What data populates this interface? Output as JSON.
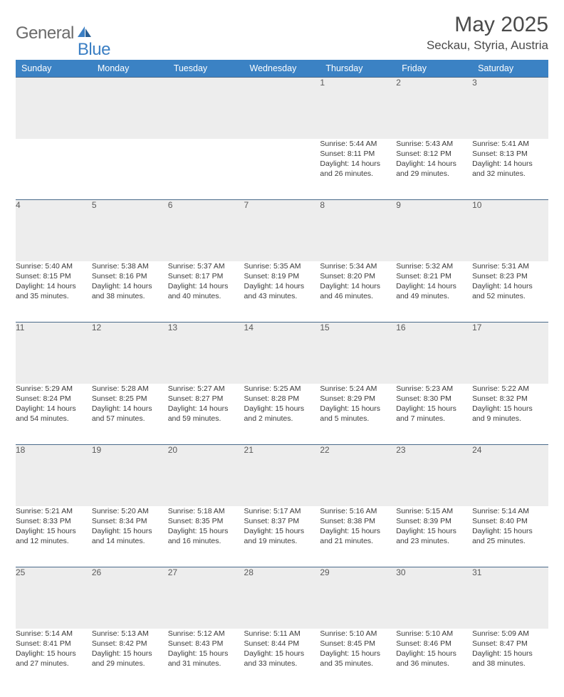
{
  "logo": {
    "part1": "General",
    "part2": "Blue"
  },
  "title": "May 2025",
  "location": "Seckau, Styria, Austria",
  "colors": {
    "header_bg": "#3b82c4",
    "header_text": "#ffffff",
    "daynum_bg": "#ededed",
    "rule": "#4a6a8a",
    "body_text": "#3a3a3a",
    "logo_gray": "#6b6b6b",
    "logo_blue": "#3b7fc4"
  },
  "typography": {
    "title_fontsize": 30,
    "location_fontsize": 17,
    "weekday_fontsize": 12.5,
    "daynum_fontsize": 12,
    "cell_fontsize": 10.5
  },
  "weekdays": [
    "Sunday",
    "Monday",
    "Tuesday",
    "Wednesday",
    "Thursday",
    "Friday",
    "Saturday"
  ],
  "weeks": [
    {
      "nums": [
        "",
        "",
        "",
        "",
        "1",
        "2",
        "3"
      ],
      "cells": [
        null,
        null,
        null,
        null,
        {
          "sunrise": "Sunrise: 5:44 AM",
          "sunset": "Sunset: 8:11 PM",
          "day1": "Daylight: 14 hours",
          "day2": "and 26 minutes."
        },
        {
          "sunrise": "Sunrise: 5:43 AM",
          "sunset": "Sunset: 8:12 PM",
          "day1": "Daylight: 14 hours",
          "day2": "and 29 minutes."
        },
        {
          "sunrise": "Sunrise: 5:41 AM",
          "sunset": "Sunset: 8:13 PM",
          "day1": "Daylight: 14 hours",
          "day2": "and 32 minutes."
        }
      ]
    },
    {
      "nums": [
        "4",
        "5",
        "6",
        "7",
        "8",
        "9",
        "10"
      ],
      "cells": [
        {
          "sunrise": "Sunrise: 5:40 AM",
          "sunset": "Sunset: 8:15 PM",
          "day1": "Daylight: 14 hours",
          "day2": "and 35 minutes."
        },
        {
          "sunrise": "Sunrise: 5:38 AM",
          "sunset": "Sunset: 8:16 PM",
          "day1": "Daylight: 14 hours",
          "day2": "and 38 minutes."
        },
        {
          "sunrise": "Sunrise: 5:37 AM",
          "sunset": "Sunset: 8:17 PM",
          "day1": "Daylight: 14 hours",
          "day2": "and 40 minutes."
        },
        {
          "sunrise": "Sunrise: 5:35 AM",
          "sunset": "Sunset: 8:19 PM",
          "day1": "Daylight: 14 hours",
          "day2": "and 43 minutes."
        },
        {
          "sunrise": "Sunrise: 5:34 AM",
          "sunset": "Sunset: 8:20 PM",
          "day1": "Daylight: 14 hours",
          "day2": "and 46 minutes."
        },
        {
          "sunrise": "Sunrise: 5:32 AM",
          "sunset": "Sunset: 8:21 PM",
          "day1": "Daylight: 14 hours",
          "day2": "and 49 minutes."
        },
        {
          "sunrise": "Sunrise: 5:31 AM",
          "sunset": "Sunset: 8:23 PM",
          "day1": "Daylight: 14 hours",
          "day2": "and 52 minutes."
        }
      ]
    },
    {
      "nums": [
        "11",
        "12",
        "13",
        "14",
        "15",
        "16",
        "17"
      ],
      "cells": [
        {
          "sunrise": "Sunrise: 5:29 AM",
          "sunset": "Sunset: 8:24 PM",
          "day1": "Daylight: 14 hours",
          "day2": "and 54 minutes."
        },
        {
          "sunrise": "Sunrise: 5:28 AM",
          "sunset": "Sunset: 8:25 PM",
          "day1": "Daylight: 14 hours",
          "day2": "and 57 minutes."
        },
        {
          "sunrise": "Sunrise: 5:27 AM",
          "sunset": "Sunset: 8:27 PM",
          "day1": "Daylight: 14 hours",
          "day2": "and 59 minutes."
        },
        {
          "sunrise": "Sunrise: 5:25 AM",
          "sunset": "Sunset: 8:28 PM",
          "day1": "Daylight: 15 hours",
          "day2": "and 2 minutes."
        },
        {
          "sunrise": "Sunrise: 5:24 AM",
          "sunset": "Sunset: 8:29 PM",
          "day1": "Daylight: 15 hours",
          "day2": "and 5 minutes."
        },
        {
          "sunrise": "Sunrise: 5:23 AM",
          "sunset": "Sunset: 8:30 PM",
          "day1": "Daylight: 15 hours",
          "day2": "and 7 minutes."
        },
        {
          "sunrise": "Sunrise: 5:22 AM",
          "sunset": "Sunset: 8:32 PM",
          "day1": "Daylight: 15 hours",
          "day2": "and 9 minutes."
        }
      ]
    },
    {
      "nums": [
        "18",
        "19",
        "20",
        "21",
        "22",
        "23",
        "24"
      ],
      "cells": [
        {
          "sunrise": "Sunrise: 5:21 AM",
          "sunset": "Sunset: 8:33 PM",
          "day1": "Daylight: 15 hours",
          "day2": "and 12 minutes."
        },
        {
          "sunrise": "Sunrise: 5:20 AM",
          "sunset": "Sunset: 8:34 PM",
          "day1": "Daylight: 15 hours",
          "day2": "and 14 minutes."
        },
        {
          "sunrise": "Sunrise: 5:18 AM",
          "sunset": "Sunset: 8:35 PM",
          "day1": "Daylight: 15 hours",
          "day2": "and 16 minutes."
        },
        {
          "sunrise": "Sunrise: 5:17 AM",
          "sunset": "Sunset: 8:37 PM",
          "day1": "Daylight: 15 hours",
          "day2": "and 19 minutes."
        },
        {
          "sunrise": "Sunrise: 5:16 AM",
          "sunset": "Sunset: 8:38 PM",
          "day1": "Daylight: 15 hours",
          "day2": "and 21 minutes."
        },
        {
          "sunrise": "Sunrise: 5:15 AM",
          "sunset": "Sunset: 8:39 PM",
          "day1": "Daylight: 15 hours",
          "day2": "and 23 minutes."
        },
        {
          "sunrise": "Sunrise: 5:14 AM",
          "sunset": "Sunset: 8:40 PM",
          "day1": "Daylight: 15 hours",
          "day2": "and 25 minutes."
        }
      ]
    },
    {
      "nums": [
        "25",
        "26",
        "27",
        "28",
        "29",
        "30",
        "31"
      ],
      "cells": [
        {
          "sunrise": "Sunrise: 5:14 AM",
          "sunset": "Sunset: 8:41 PM",
          "day1": "Daylight: 15 hours",
          "day2": "and 27 minutes."
        },
        {
          "sunrise": "Sunrise: 5:13 AM",
          "sunset": "Sunset: 8:42 PM",
          "day1": "Daylight: 15 hours",
          "day2": "and 29 minutes."
        },
        {
          "sunrise": "Sunrise: 5:12 AM",
          "sunset": "Sunset: 8:43 PM",
          "day1": "Daylight: 15 hours",
          "day2": "and 31 minutes."
        },
        {
          "sunrise": "Sunrise: 5:11 AM",
          "sunset": "Sunset: 8:44 PM",
          "day1": "Daylight: 15 hours",
          "day2": "and 33 minutes."
        },
        {
          "sunrise": "Sunrise: 5:10 AM",
          "sunset": "Sunset: 8:45 PM",
          "day1": "Daylight: 15 hours",
          "day2": "and 35 minutes."
        },
        {
          "sunrise": "Sunrise: 5:10 AM",
          "sunset": "Sunset: 8:46 PM",
          "day1": "Daylight: 15 hours",
          "day2": "and 36 minutes."
        },
        {
          "sunrise": "Sunrise: 5:09 AM",
          "sunset": "Sunset: 8:47 PM",
          "day1": "Daylight: 15 hours",
          "day2": "and 38 minutes."
        }
      ]
    }
  ]
}
